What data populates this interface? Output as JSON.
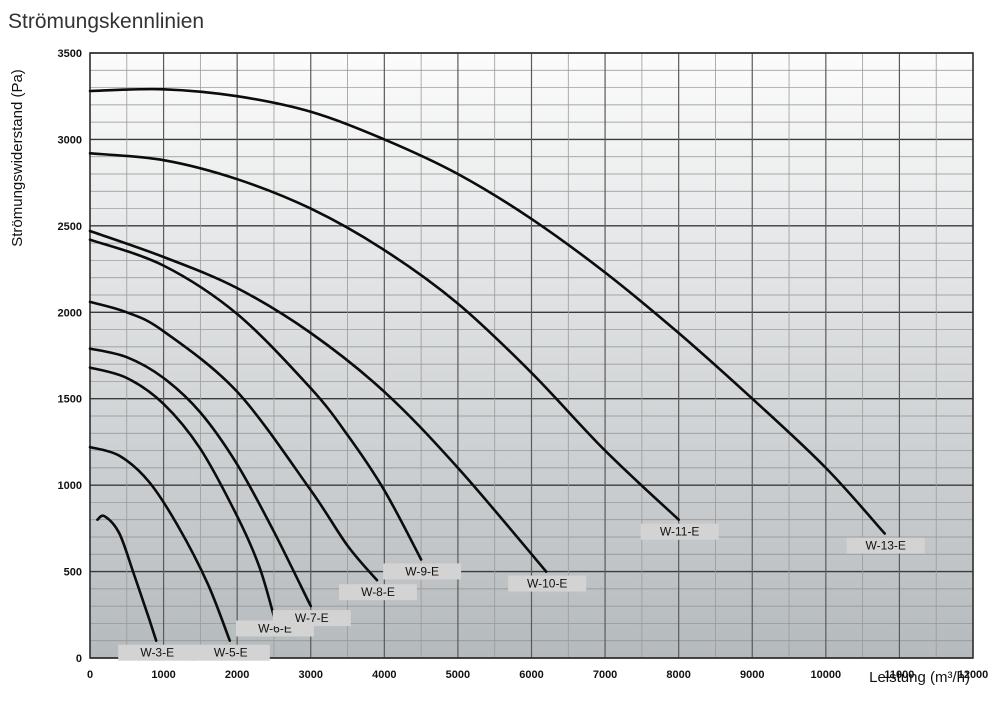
{
  "chart_data": {
    "type": "line",
    "title": "Strömungskennlinien",
    "xlabel": "Leistung (m³/h)",
    "ylabel": "Strömungswiderstand (Pa)",
    "xlim": [
      0,
      12000
    ],
    "ylim": [
      0,
      3500
    ],
    "x_ticks": [
      "0",
      "1000",
      "2000",
      "3000",
      "4000",
      "5000",
      "6000",
      "7000",
      "8000",
      "9000",
      "10000",
      "11000",
      "12000"
    ],
    "y_ticks": [
      "0",
      "500",
      "1000",
      "1500",
      "2000",
      "2500",
      "3000",
      "3500"
    ],
    "grid": true,
    "series": [
      {
        "name": "W-3-E",
        "points": [
          [
            100,
            800
          ],
          [
            200,
            820
          ],
          [
            400,
            720
          ],
          [
            600,
            480
          ],
          [
            800,
            230
          ],
          [
            900,
            100
          ]
        ]
      },
      {
        "name": "W-5-E",
        "points": [
          [
            0,
            1220
          ],
          [
            400,
            1170
          ],
          [
            800,
            1020
          ],
          [
            1200,
            760
          ],
          [
            1600,
            430
          ],
          [
            1900,
            100
          ]
        ]
      },
      {
        "name": "W-6-E",
        "points": [
          [
            0,
            1680
          ],
          [
            500,
            1620
          ],
          [
            1000,
            1470
          ],
          [
            1500,
            1210
          ],
          [
            2000,
            820
          ],
          [
            2300,
            530
          ],
          [
            2500,
            240
          ]
        ]
      },
      {
        "name": "W-7-E",
        "points": [
          [
            0,
            1790
          ],
          [
            500,
            1740
          ],
          [
            1000,
            1620
          ],
          [
            1500,
            1420
          ],
          [
            2000,
            1120
          ],
          [
            2500,
            730
          ],
          [
            3000,
            300
          ]
        ]
      },
      {
        "name": "W-8-E",
        "points": [
          [
            0,
            2060
          ],
          [
            500,
            2000
          ],
          [
            1000,
            1890
          ],
          [
            2000,
            1540
          ],
          [
            3000,
            970
          ],
          [
            3500,
            650
          ],
          [
            3900,
            450
          ]
        ]
      },
      {
        "name": "W-9-E",
        "points": [
          [
            0,
            2420
          ],
          [
            1000,
            2270
          ],
          [
            2000,
            1990
          ],
          [
            3000,
            1560
          ],
          [
            3500,
            1290
          ],
          [
            4000,
            970
          ],
          [
            4500,
            570
          ]
        ]
      },
      {
        "name": "W-10-E",
        "points": [
          [
            0,
            2470
          ],
          [
            1000,
            2320
          ],
          [
            2000,
            2140
          ],
          [
            3000,
            1880
          ],
          [
            4000,
            1540
          ],
          [
            5000,
            1100
          ],
          [
            6200,
            500
          ]
        ]
      },
      {
        "name": "W-11-E",
        "points": [
          [
            0,
            2920
          ],
          [
            1000,
            2880
          ],
          [
            2000,
            2770
          ],
          [
            3000,
            2600
          ],
          [
            4000,
            2360
          ],
          [
            5000,
            2050
          ],
          [
            6000,
            1650
          ],
          [
            7000,
            1200
          ],
          [
            8000,
            800
          ]
        ]
      },
      {
        "name": "W-13-E",
        "points": [
          [
            0,
            3280
          ],
          [
            1000,
            3290
          ],
          [
            2000,
            3250
          ],
          [
            3000,
            3160
          ],
          [
            4000,
            3000
          ],
          [
            5000,
            2800
          ],
          [
            6000,
            2540
          ],
          [
            7000,
            2230
          ],
          [
            8000,
            1880
          ],
          [
            9000,
            1500
          ],
          [
            10000,
            1100
          ],
          [
            10800,
            720
          ]
        ]
      }
    ]
  }
}
